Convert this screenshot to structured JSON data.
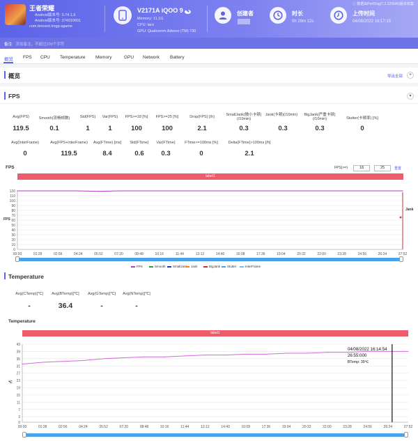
{
  "app": {
    "name": "王者荣耀",
    "android_version": "Android版本号: 3.74.1.6",
    "android_code": "Android版本号: 374010601",
    "package": "com.tencent.tmgp.sgame"
  },
  "device": {
    "title": "V2171A iQOO 9",
    "memory": "Memory: 11.1G",
    "cpu": "CPU: taro",
    "gpu": "GPU: Qualcomm Adreno (TM) 730"
  },
  "creator": {
    "label": "创建者"
  },
  "duration": {
    "label": "时长",
    "value": "0h 29m 12s"
  },
  "upload": {
    "label": "上传时间",
    "value": "04/08/2022 16:17:15"
  },
  "topright_text": "数据由PerfDog(7.2.220640)版本收集",
  "note": {
    "label": "备注:",
    "placeholder": "添加备注，不超过200个字符"
  },
  "tabs": [
    "概览",
    "FPS",
    "CPU",
    "Temperature",
    "Memory",
    "GPU",
    "Network",
    "Battery"
  ],
  "overview": {
    "title": "概览",
    "export": "导出全部"
  },
  "fps_section": {
    "title": "FPS",
    "metrics_row1": [
      {
        "h": "Avg(FPS)",
        "v": "119.5"
      },
      {
        "h": "Smooth(流畅帧数)",
        "v": "0.1"
      },
      {
        "h": "Std(FPS)",
        "v": "1"
      },
      {
        "h": "Var(FPS)",
        "v": "1"
      },
      {
        "h": "FPS>=18 [%]",
        "v": "100"
      },
      {
        "h": "FPS>=25 [%]",
        "v": "100"
      },
      {
        "h": "Drop(FPS) [/h]",
        "v": "2.1"
      },
      {
        "h": "SmallJank(微小卡顿)(/10min)",
        "v": "0.3"
      },
      {
        "h": "Jank(卡顿)(/10min)",
        "v": "0.3"
      },
      {
        "h": "BigJank(严重卡顿)(/10min)",
        "v": "0.3"
      },
      {
        "h": "Stutter(卡顿率) [%]",
        "v": "0"
      }
    ],
    "metrics_row2": [
      {
        "h": "Avg(InterFrame)",
        "v": "0"
      },
      {
        "h": "Avg(FPS+InterFrame)",
        "v": "119.5"
      },
      {
        "h": "Avg(FTime) [ms]",
        "v": "8.4"
      },
      {
        "h": "Std(FTime)",
        "v": "0.6"
      },
      {
        "h": "Var(FTime)",
        "v": "0.3"
      },
      {
        "h": "FTime>=100ms [%]",
        "v": "0"
      },
      {
        "h": "Delta(FTime)>100ms [/h]",
        "v": "2.1"
      }
    ],
    "chart_title": "FPS",
    "label": "label1",
    "fps_threshold_label": "FPS(>=)",
    "fps_threshold_1": "18",
    "fps_threshold_2": "25",
    "reset": "重置",
    "y_axis_title": "FPS",
    "y2_axis_title": "Jank",
    "legend": [
      "FPS",
      "Smooth",
      "SmallJank",
      "Jank",
      "BigJank",
      "Stutter",
      "InterFrame"
    ]
  },
  "temp_section": {
    "title": "Temperature",
    "summary": [
      {
        "h": "Avg(CTemp)[℃]",
        "v": "-"
      },
      {
        "h": "Avg(BTemp)[℃]",
        "v": "36.4"
      },
      {
        "h": "Avg(GTemp)[℃]",
        "v": "-"
      },
      {
        "h": "Avg(NTemp)[℃]",
        "v": "-"
      }
    ],
    "chart_title": "Temperature",
    "label": "label1",
    "y_axis_title": "℃",
    "tooltip": {
      "date": "04/08/2022 16:14:54",
      "time": "26:55:000",
      "value": "BTemp: 39℃"
    }
  },
  "colors": {
    "accent": "#5b63e8",
    "fps_line": "#b23fc0",
    "temp_line": "#d06ad8",
    "label_bar": "#ee5b6b",
    "slider": "#4aa3e8"
  },
  "chart_data": [
    {
      "type": "line",
      "title": "FPS",
      "ylabel": "FPS",
      "x": [
        "00:00",
        "01:28",
        "02:56",
        "04:24",
        "05:52",
        "07:20",
        "08:48",
        "10:16",
        "11:44",
        "13:12",
        "14:40",
        "16:08",
        "17:36",
        "19:04",
        "20:32",
        "22:00",
        "23:28",
        "24:56",
        "26:24",
        "27:52"
      ],
      "ylim": [
        0,
        120
      ],
      "yticks": [
        0,
        10,
        20,
        30,
        40,
        50,
        60,
        70,
        80,
        90,
        100,
        110,
        120
      ],
      "series": [
        {
          "name": "FPS",
          "values": [
            120,
            120,
            120,
            120,
            119,
            120,
            120,
            120,
            120,
            120,
            120,
            120,
            120,
            120,
            120,
            120,
            120,
            120,
            120,
            120
          ]
        }
      ],
      "legend": [
        "FPS",
        "Smooth",
        "SmallJank",
        "Jank",
        "BigJank",
        "Stutter",
        "InterFrame"
      ],
      "legend_position": "bottom"
    },
    {
      "type": "line",
      "title": "Temperature",
      "ylabel": "℃",
      "x": [
        "00:00",
        "01:28",
        "02:56",
        "04:24",
        "05:52",
        "07:20",
        "08:48",
        "10:16",
        "11:44",
        "13:12",
        "14:40",
        "16:08",
        "17:36",
        "19:04",
        "20:32",
        "22:00",
        "23:28",
        "24:56",
        "26:24",
        "27:52"
      ],
      "ylim": [
        0,
        43
      ],
      "yticks": [
        0,
        3,
        7,
        11,
        15,
        19,
        23,
        27,
        31,
        35,
        39,
        43
      ],
      "series": [
        {
          "name": "BTemp",
          "values": [
            32,
            33,
            33.5,
            34,
            35,
            35.5,
            36,
            36,
            36.5,
            37,
            37,
            37.5,
            37.5,
            38,
            38,
            38.5,
            38.5,
            39,
            39,
            39
          ]
        }
      ],
      "legend_position": "none"
    }
  ]
}
